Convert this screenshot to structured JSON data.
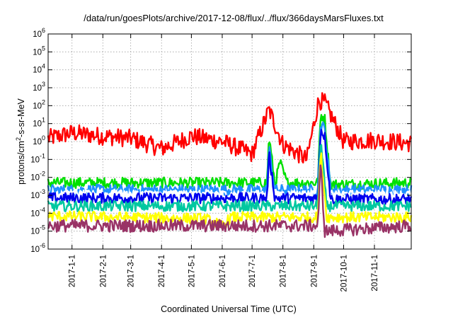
{
  "chart_data": {
    "type": "line",
    "title": "/data/run/goesPlots/archive/2017-12-08/flux/../flux/366daysMarsFluxes.txt",
    "xlabel": "Coordinated Universal Time (UTC)",
    "ylabel": "protons/cm²-s-sr-MeV",
    "ylabel_base": "protons/cm",
    "ylabel_sup": "2",
    "ylabel_rest": "-s-sr-MeV",
    "x_range": [
      "2016-12-08",
      "2017-12-08"
    ],
    "y_range": [
      1e-06,
      1000000.0
    ],
    "y_scale": "log",
    "grid": true,
    "x_ticks": [
      "2017-1-1",
      "2017-2-1",
      "2017-3-1",
      "2017-4-1",
      "2017-5-1",
      "2017-6-1",
      "2017-7-1",
      "2017-8-1",
      "2017-9-1",
      "2017-10-1",
      "2017-11-1"
    ],
    "y_ticks": [
      {
        "base": "10",
        "exp": "-6"
      },
      {
        "base": "10",
        "exp": "-5"
      },
      {
        "base": "10",
        "exp": "-4"
      },
      {
        "base": "10",
        "exp": "-3"
      },
      {
        "base": "10",
        "exp": "-2"
      },
      {
        "base": "10",
        "exp": "-1"
      },
      {
        "base": "10",
        "exp": "0"
      },
      {
        "base": "10",
        "exp": "1"
      },
      {
        "base": "10",
        "exp": "2"
      },
      {
        "base": "10",
        "exp": "3"
      },
      {
        "base": "10",
        "exp": "4"
      },
      {
        "base": "10",
        "exp": "5"
      },
      {
        "base": "10",
        "exp": "6"
      }
    ],
    "series": [
      {
        "color": "#ff0000",
        "baseline": 1.2,
        "noise": 0.5,
        "points": [
          [
            "2016-12-08",
            1.5
          ],
          [
            "2017-01-01",
            3
          ],
          [
            "2017-02-01",
            2
          ],
          [
            "2017-03-01",
            1.5
          ],
          [
            "2017-04-01",
            0.4
          ],
          [
            "2017-05-01",
            2
          ],
          [
            "2017-06-01",
            1
          ],
          [
            "2017-07-01",
            0.2
          ],
          [
            "2017-07-18",
            60
          ],
          [
            "2017-08-01",
            0.7
          ],
          [
            "2017-08-25",
            0.1
          ],
          [
            "2017-09-06",
            200
          ],
          [
            "2017-09-12",
            150
          ],
          [
            "2017-10-01",
            1
          ],
          [
            "2017-11-01",
            1.2
          ],
          [
            "2017-12-08",
            0.8
          ]
        ]
      },
      {
        "color": "#00e000",
        "baseline": 0.005,
        "noise": 0.3,
        "points": [
          [
            "2016-12-08",
            0.005
          ],
          [
            "2017-07-16",
            0.005
          ],
          [
            "2017-07-18",
            2
          ],
          [
            "2017-07-24",
            0.004
          ],
          [
            "2017-07-29",
            0.07
          ],
          [
            "2017-08-05",
            0.005
          ],
          [
            "2017-09-05",
            0.005
          ],
          [
            "2017-09-08",
            30
          ],
          [
            "2017-09-12",
            20
          ],
          [
            "2017-09-18",
            0.004
          ],
          [
            "2017-12-08",
            0.005
          ]
        ]
      },
      {
        "color": "#1e90ff",
        "baseline": 0.002,
        "noise": 0.3,
        "points": [
          [
            "2016-12-08",
            0.002
          ],
          [
            "2017-07-16",
            0.002
          ],
          [
            "2017-07-18",
            0.5
          ],
          [
            "2017-07-24",
            0.002
          ],
          [
            "2017-09-05",
            0.002
          ],
          [
            "2017-09-08",
            10
          ],
          [
            "2017-09-12",
            5
          ],
          [
            "2017-09-18",
            0.002
          ],
          [
            "2017-12-08",
            0.002
          ]
        ]
      },
      {
        "color": "#ffffff",
        "baseline": 0.0012,
        "noise": 0.2,
        "points": [
          [
            "2016-12-08",
            0.0012
          ],
          [
            "2017-12-08",
            0.0012
          ]
        ]
      },
      {
        "color": "#0000ee",
        "baseline": 0.0007,
        "noise": 0.3,
        "points": [
          [
            "2016-12-08",
            0.0007
          ],
          [
            "2017-07-16",
            0.0007
          ],
          [
            "2017-07-18",
            0.2
          ],
          [
            "2017-07-24",
            0.0007
          ],
          [
            "2017-09-05",
            0.0007
          ],
          [
            "2017-09-08",
            5
          ],
          [
            "2017-09-12",
            2
          ],
          [
            "2017-09-18",
            0.0006
          ],
          [
            "2017-12-08",
            0.0006
          ]
        ]
      },
      {
        "color": "#00c8a0",
        "baseline": 0.00025,
        "noise": 0.3,
        "points": [
          [
            "2016-12-08",
            0.00025
          ],
          [
            "2017-09-05",
            0.00025
          ],
          [
            "2017-09-08",
            1
          ],
          [
            "2017-09-14",
            0.00025
          ],
          [
            "2017-12-08",
            0.00025
          ]
        ]
      },
      {
        "color": "#ffff00",
        "baseline": 7e-05,
        "noise": 0.3,
        "points": [
          [
            "2016-12-08",
            7e-05
          ],
          [
            "2017-05-15",
            5e-05
          ],
          [
            "2017-06-01",
            2e-05
          ],
          [
            "2017-06-10",
            6e-05
          ],
          [
            "2017-09-05",
            6e-05
          ],
          [
            "2017-09-08",
            0.3
          ],
          [
            "2017-09-14",
            6e-05
          ],
          [
            "2017-12-08",
            6e-05
          ]
        ]
      },
      {
        "color": "#993366",
        "baseline": 2e-05,
        "noise": 0.35,
        "points": [
          [
            "2016-12-08",
            2e-05
          ],
          [
            "2017-09-05",
            2e-05
          ],
          [
            "2017-09-08",
            0.05
          ],
          [
            "2017-09-12",
            1e-05
          ],
          [
            "2017-12-08",
            2e-05
          ]
        ]
      }
    ]
  }
}
